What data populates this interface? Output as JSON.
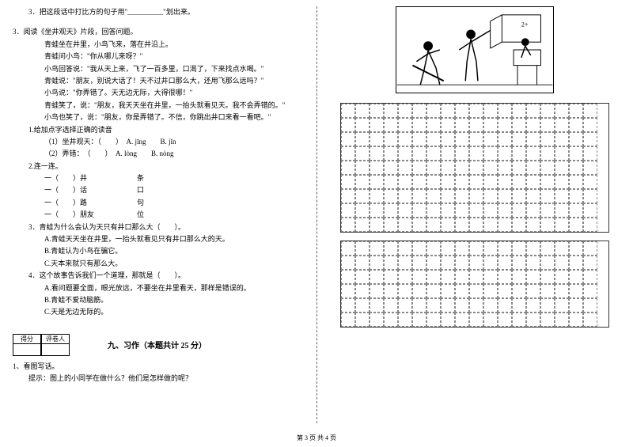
{
  "left": {
    "q3pre": "3．把这段话中打比方的句子用\"__________\"划出来。",
    "q3title": "3．阅读《坐井观天》片段，回答问题。",
    "story": [
      "青蛙坐在井里，小鸟飞来，落在井沿上。",
      "青蛙问小鸟：\"你从哪儿来呀？\"",
      "小鸟回答说：\"我从天上来，飞了一百多里，口渴了，下来找点水喝。\"",
      "青蛙说：\"朋友，别说大话了！天不过井口那么大，还用飞那么远吗？\"",
      "小鸟说：\"你弄错了。天无边无际，大得很哪！\"",
      "青蛙笑了，说：\"朋友，我天天坐在井里，一抬头就看见天。我不会弄错的。\"",
      "小鸟也笑了，说：\"朋友，你是弄错了。不信，你跳出井口来看一看吧。\""
    ],
    "sub1": "1.给加点字选择正确的读音",
    "sub1_a": "（1）坐井观天：（　　）　A. jīng　　B. jǐn",
    "sub1_b": "（2）弄错：　（　　）　A. lòng　　B. nòng",
    "sub2": "2.连一连。",
    "match": [
      "一（　　）井　　　　　　　条",
      "一（　　）话　　　　　　　口",
      "一（　　）路　　　　　　　句",
      "一（　　）朋友　　　　　　位"
    ],
    "sub3": "3．青蛙为什么会认为天只有井口那么大（　　）。",
    "sub3_opts": [
      "A.青蛙天天坐在井里，一抬头就看见只有井口那么大的天。",
      "B.青蛙认为小鸟在骗它。",
      "C.天本来就只有那么大。"
    ],
    "sub4": "4．这个故事告诉我们一个道理，那就是（　　）。",
    "sub4_opts": [
      "A.看问题要全面，眼光放远，不要坐在井里看天，那样是错误的。",
      "B.青蛙不爱动脑筋。",
      "C.天是无边无际的。"
    ],
    "score_labels": [
      "得分",
      "评卷人"
    ],
    "section9": "九、习作（本题共计 25 分）",
    "writing1": "1、看图写话。",
    "writing_hint": "提示：图上的小同学在做什么？他们是怎样做的呢？"
  },
  "right": {
    "grid1": {
      "rows": 9,
      "cols": 18,
      "cell_size": 18
    },
    "grid2": {
      "rows": 6,
      "cols": 18,
      "cell_size": 18
    }
  },
  "footer": "第 3 页  共 4 页",
  "colors": {
    "text": "#000000",
    "border": "#333333",
    "dash": "#888888"
  }
}
